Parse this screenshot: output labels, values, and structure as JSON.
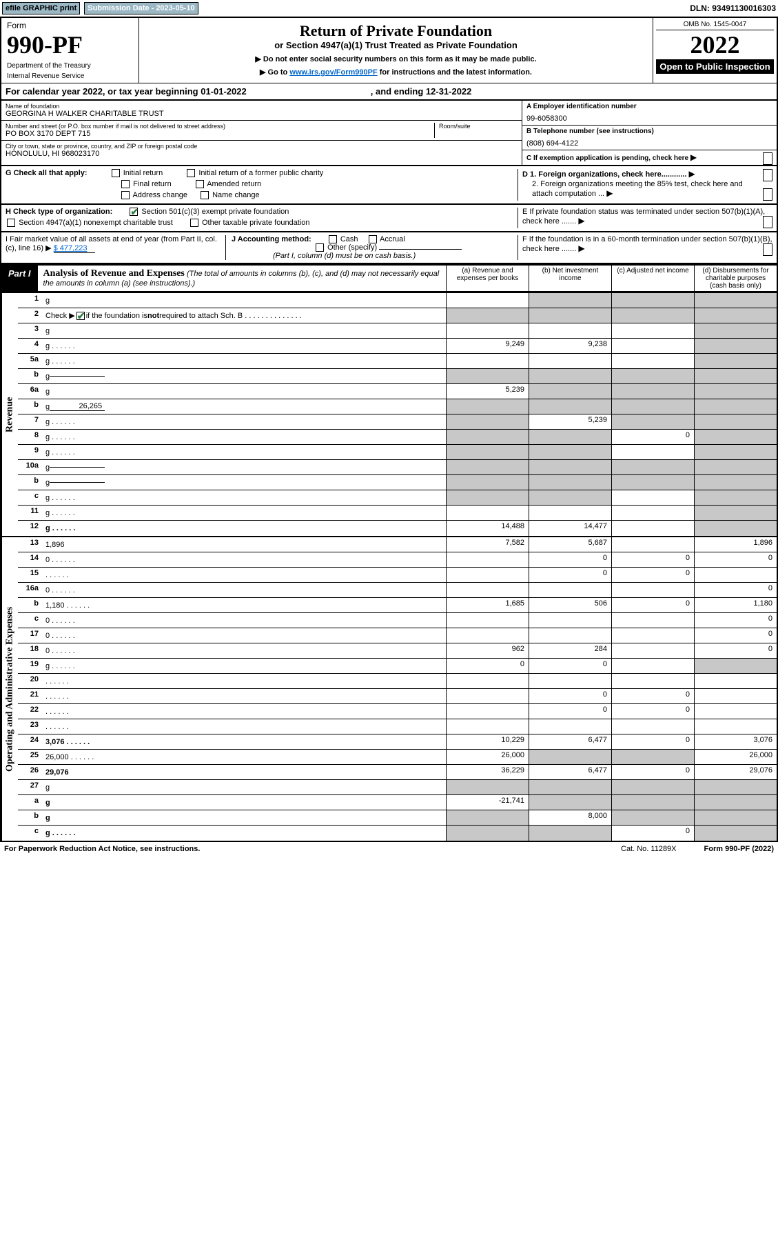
{
  "top": {
    "efile": "efile GRAPHIC print",
    "submission": "Submission Date - 2023-05-10",
    "dln": "DLN: 93491130016303"
  },
  "header": {
    "form_label": "Form",
    "form_no": "990-PF",
    "dept": "Department of the Treasury",
    "irs": "Internal Revenue Service",
    "title": "Return of Private Foundation",
    "subtitle": "or Section 4947(a)(1) Trust Treated as Private Foundation",
    "instr1": "▶ Do not enter social security numbers on this form as it may be made public.",
    "instr2_pre": "▶ Go to ",
    "instr2_link": "www.irs.gov/Form990PF",
    "instr2_post": " for instructions and the latest information.",
    "omb": "OMB No. 1545-0047",
    "year": "2022",
    "open": "Open to Public Inspection"
  },
  "calendar": {
    "text": "For calendar year 2022, or tax year beginning 01-01-2022",
    "ending": ", and ending 12-31-2022"
  },
  "info": {
    "name_label": "Name of foundation",
    "name": "GEORGINA H WALKER CHARITABLE TRUST",
    "addr_label": "Number and street (or P.O. box number if mail is not delivered to street address)",
    "addr": "PO BOX 3170 DEPT 715",
    "room_label": "Room/suite",
    "city_label": "City or town, state or province, country, and ZIP or foreign postal code",
    "city": "HONOLULU, HI  968023170",
    "a_label": "A Employer identification number",
    "a_val": "99-6058300",
    "b_label": "B Telephone number (see instructions)",
    "b_val": "(808) 694-4122",
    "c_label": "C If exemption application is pending, check here",
    "d1": "D 1. Foreign organizations, check here............",
    "d2": "2. Foreign organizations meeting the 85% test, check here and attach computation ...",
    "e": "E  If private foundation status was terminated under section 507(b)(1)(A), check here .......",
    "f": "F  If the foundation is in a 60-month termination under section 507(b)(1)(B), check here .......",
    "g_label": "G Check all that apply:",
    "g_opts": [
      "Initial return",
      "Initial return of a former public charity",
      "Final return",
      "Amended return",
      "Address change",
      "Name change"
    ],
    "h_label": "H Check type of organization:",
    "h1": "Section 501(c)(3) exempt private foundation",
    "h2": "Section 4947(a)(1) nonexempt charitable trust",
    "h3": "Other taxable private foundation",
    "i_label": "I Fair market value of all assets at end of year (from Part II, col. (c), line 16) ▶",
    "i_val": "$  477,223",
    "j_label": "J Accounting method:",
    "j_cash": "Cash",
    "j_accrual": "Accrual",
    "j_other": "Other (specify)",
    "j_note": "(Part I, column (d) must be on cash basis.)"
  },
  "part1": {
    "label": "Part I",
    "title": "Analysis of Revenue and Expenses",
    "note": " (The total of amounts in columns (b), (c), and (d) may not necessarily equal the amounts in column (a) (see instructions).)",
    "col_a": "(a)   Revenue and expenses per books",
    "col_b": "(b)   Net investment income",
    "col_c": "(c)   Adjusted net income",
    "col_d": "(d)   Disbursements for charitable purposes (cash basis only)"
  },
  "side_labels": {
    "revenue": "Revenue",
    "expenses": "Operating and Administrative Expenses"
  },
  "rows": [
    {
      "n": "1",
      "d": "g",
      "a": "",
      "b": "g",
      "c": "g"
    },
    {
      "n": "2",
      "d": "g",
      "dots": true,
      "a": "g",
      "b": "g",
      "c": "g",
      "check": true
    },
    {
      "n": "3",
      "d": "g",
      "a": "",
      "b": "",
      "c": ""
    },
    {
      "n": "4",
      "d": "g",
      "dots": true,
      "a": "9,249",
      "b": "9,238",
      "c": ""
    },
    {
      "n": "5a",
      "d": "g",
      "dots": true,
      "a": "",
      "b": "",
      "c": ""
    },
    {
      "n": "b",
      "d": "g",
      "sub": "",
      "a": "g",
      "b": "g",
      "c": "g"
    },
    {
      "n": "6a",
      "d": "g",
      "a": "5,239",
      "b": "g",
      "c": "g"
    },
    {
      "n": "b",
      "d": "g",
      "sub": "26,265",
      "a": "g",
      "b": "g",
      "c": "g"
    },
    {
      "n": "7",
      "d": "g",
      "dots": true,
      "a": "g",
      "b": "5,239",
      "c": "g"
    },
    {
      "n": "8",
      "d": "g",
      "dots": true,
      "a": "g",
      "b": "g",
      "c": "0"
    },
    {
      "n": "9",
      "d": "g",
      "dots": true,
      "a": "g",
      "b": "g",
      "c": ""
    },
    {
      "n": "10a",
      "d": "g",
      "sub": "",
      "a": "g",
      "b": "g",
      "c": "g"
    },
    {
      "n": "b",
      "d": "g",
      "dots": true,
      "sub": "",
      "a": "g",
      "b": "g",
      "c": "g"
    },
    {
      "n": "c",
      "d": "g",
      "dots": true,
      "a": "g",
      "b": "g",
      "c": ""
    },
    {
      "n": "11",
      "d": "g",
      "dots": true,
      "a": "",
      "b": "",
      "c": ""
    },
    {
      "n": "12",
      "d": "g",
      "dots": true,
      "bold": true,
      "a": "14,488",
      "b": "14,477",
      "c": ""
    }
  ],
  "exp_rows": [
    {
      "n": "13",
      "d": "1,896",
      "a": "7,582",
      "b": "5,687",
      "c": ""
    },
    {
      "n": "14",
      "d": "0",
      "dots": true,
      "a": "",
      "b": "0",
      "c": "0"
    },
    {
      "n": "15",
      "d": "",
      "dots": true,
      "a": "",
      "b": "0",
      "c": "0"
    },
    {
      "n": "16a",
      "d": "0",
      "dots": true,
      "a": "",
      "b": "",
      "c": ""
    },
    {
      "n": "b",
      "d": "1,180",
      "dots": true,
      "a": "1,685",
      "b": "506",
      "c": "0"
    },
    {
      "n": "c",
      "d": "0",
      "dots": true,
      "a": "",
      "b": "",
      "c": ""
    },
    {
      "n": "17",
      "d": "0",
      "dots": true,
      "a": "",
      "b": "",
      "c": ""
    },
    {
      "n": "18",
      "d": "0",
      "dots": true,
      "a": "962",
      "b": "284",
      "c": ""
    },
    {
      "n": "19",
      "d": "g",
      "dots": true,
      "a": "0",
      "b": "0",
      "c": ""
    },
    {
      "n": "20",
      "d": "",
      "dots": true,
      "a": "",
      "b": "",
      "c": ""
    },
    {
      "n": "21",
      "d": "",
      "dots": true,
      "a": "",
      "b": "0",
      "c": "0"
    },
    {
      "n": "22",
      "d": "",
      "dots": true,
      "a": "",
      "b": "0",
      "c": "0"
    },
    {
      "n": "23",
      "d": "",
      "dots": true,
      "a": "",
      "b": "",
      "c": ""
    },
    {
      "n": "24",
      "d": "3,076",
      "dots": true,
      "bold": true,
      "a": "10,229",
      "b": "6,477",
      "c": "0"
    },
    {
      "n": "25",
      "d": "26,000",
      "dots": true,
      "a": "26,000",
      "b": "g",
      "c": "g"
    },
    {
      "n": "26",
      "d": "29,076",
      "bold": true,
      "a": "36,229",
      "b": "6,477",
      "c": "0"
    },
    {
      "n": "27",
      "d": "g",
      "a": "g",
      "b": "g",
      "c": "g"
    },
    {
      "n": "a",
      "d": "g",
      "bold": true,
      "a": "-21,741",
      "b": "g",
      "c": "g"
    },
    {
      "n": "b",
      "d": "g",
      "bold": true,
      "a": "g",
      "b": "8,000",
      "c": "g"
    },
    {
      "n": "c",
      "d": "g",
      "dots": true,
      "bold": true,
      "a": "g",
      "b": "g",
      "c": "0"
    }
  ],
  "footer": {
    "left": "For Paperwork Reduction Act Notice, see instructions.",
    "cat": "Cat. No. 11289X",
    "right": "Form 990-PF (2022)"
  }
}
